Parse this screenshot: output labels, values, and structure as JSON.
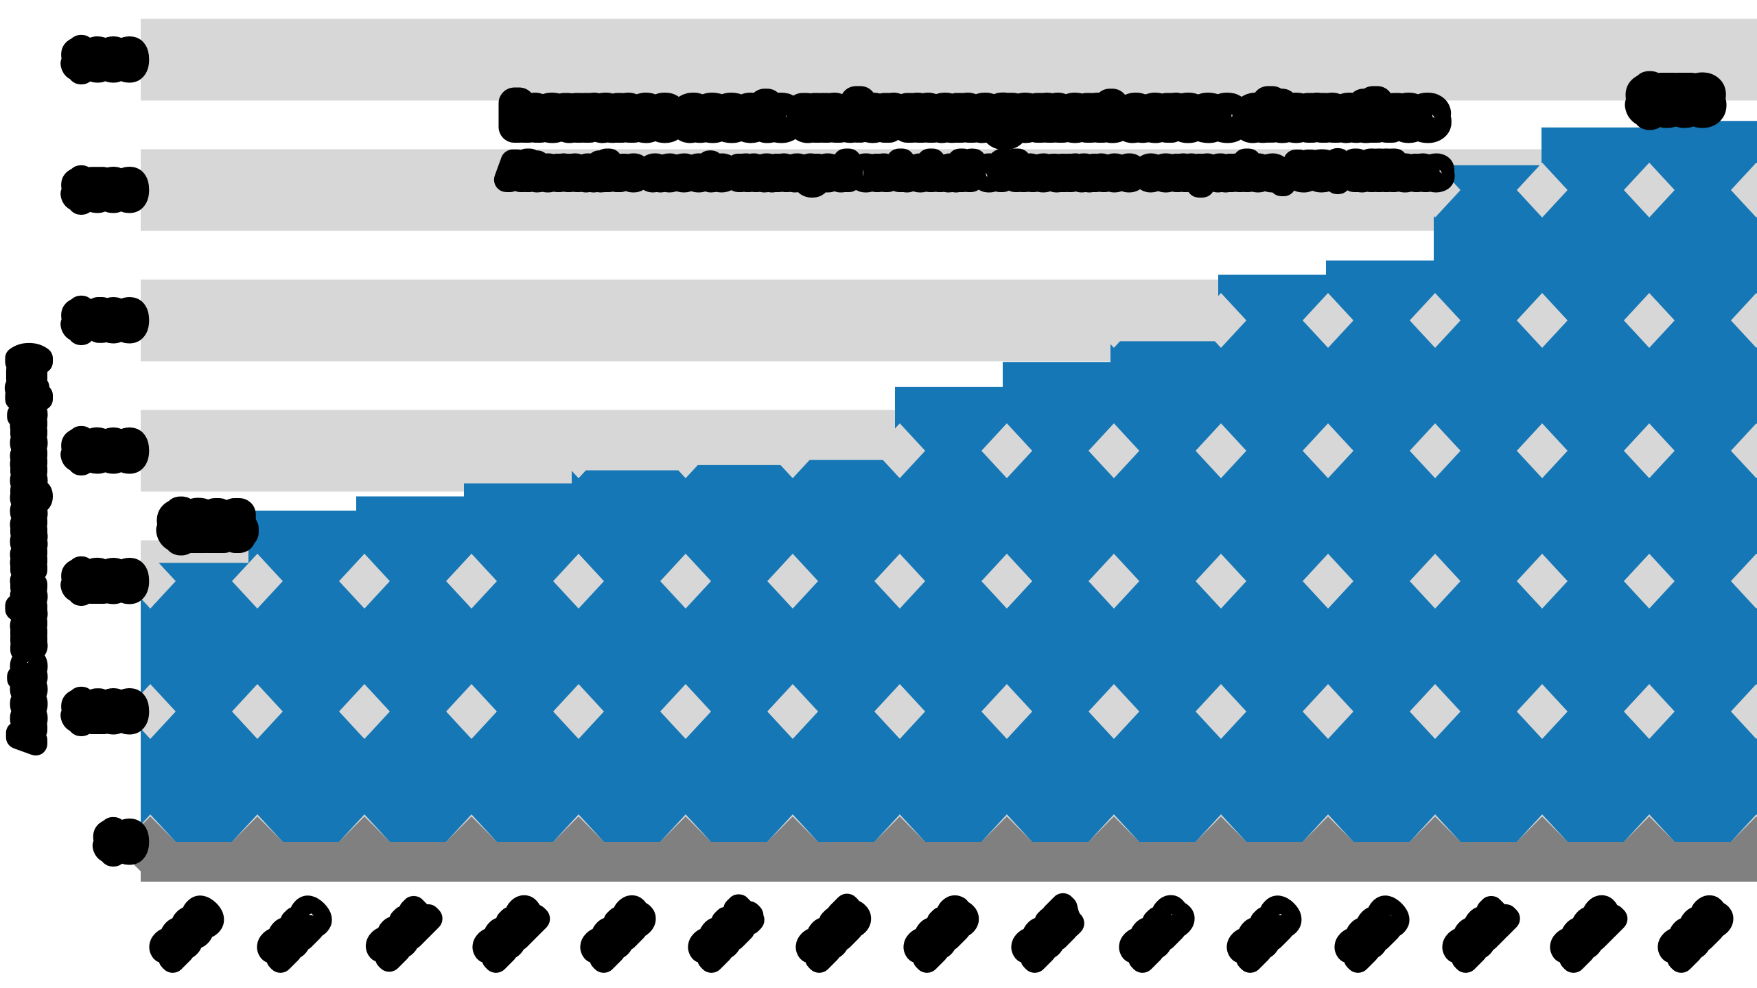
{
  "chart_data": {
    "type": "area",
    "title": "Insurance assets under management across alternatives",
    "subtitle": "Alternative assets managed on behalf of insurance companies, US$ billions",
    "categories": [
      "2009",
      "2010",
      "2011",
      "2012",
      "2013",
      "2014",
      "2015",
      "2016",
      "2017",
      "2018",
      "2019",
      "2020",
      "2021",
      "2022",
      "2023"
    ],
    "values": [
      214,
      254,
      265,
      275,
      285,
      289,
      293,
      349,
      368,
      384,
      435,
      446,
      519,
      548,
      553
    ],
    "series_name": "Insurance AUM in alternatives",
    "start_label": "$214",
    "end_label": "$553",
    "xlabel": "",
    "ylabel": "Assets under management ($B)",
    "y_axis": {
      "tick_labels": [
        "$600",
        "$500",
        "$400",
        "$300",
        "$200",
        "$100",
        "$0"
      ],
      "tick_values": [
        600,
        500,
        400,
        300,
        200,
        100,
        0
      ],
      "range": [
        0,
        600
      ]
    },
    "x_tick_rotation_deg": 45,
    "grid": "horizontal-bands",
    "legend": "none",
    "colors": {
      "area_fill": "#1577b5",
      "pattern_diamond": "#d7d7d7",
      "grid_band": "#d7d7d7",
      "axis_band": "#808080",
      "text": "#000000",
      "background": "#ffffff"
    }
  },
  "layout_note": "stylized dilated rendering: blobby black text, diamond lattice holes in area fill"
}
